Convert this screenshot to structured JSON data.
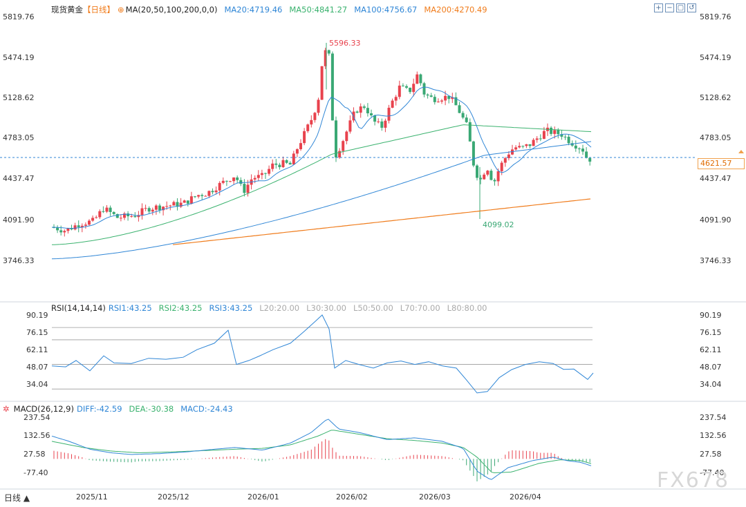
{
  "header": {
    "instrument": "现货黄金",
    "period": "【日线】",
    "ma_label": "MA(20,50,100,200,0,0)",
    "ma20": "MA20:4719.46",
    "ma50": "MA50:4841.27",
    "ma100": "MA100:4756.67",
    "ma200": "MA200:4270.49"
  },
  "rsi_header": {
    "label": "RSI(14,14,14)",
    "rsi1": "RSI1:43.25",
    "rsi2": "RSI2:43.25",
    "rsi3": "RSI3:43.25",
    "l20": "L20:20.00",
    "l30": "L30:30.00",
    "l50": "L50:50.00",
    "l70": "L70:70.00",
    "l80": "L80:80.00"
  },
  "macd_header": {
    "label": "MACD(26,12,9)",
    "diff": "DIFF:-42.59",
    "dea": "DEA:-30.38",
    "macd": "MACD:-24.43"
  },
  "footer": {
    "period_button": "日线 ▲",
    "watermark": "FX678"
  },
  "current_price": "4621.57",
  "colors": {
    "up": "#e8424d",
    "down": "#3aa874",
    "ma20": "#2f86d6",
    "ma50": "#3ab26e",
    "ma100": "#2f86d6",
    "ma200": "#f07c1c",
    "rsi": "#2f86d6",
    "dea": "#3ab26e",
    "diff": "#2f86d6"
  },
  "chart_data": [
    {
      "type": "candlestick",
      "title": "现货黄金",
      "y_ticks": [
        "5819.76",
        "5474.19",
        "5128.62",
        "4783.05",
        "4437.47",
        "4091.90",
        "3746.33"
      ],
      "ylim": [
        3700,
        5870
      ],
      "x_ticks": [
        "2025/11",
        "2025/12",
        "2026/01",
        "2026/02",
        "2026/03",
        "2026/04"
      ],
      "annotations": {
        "high": "5596.33",
        "low": "4099.02"
      },
      "last_price": 4621.57,
      "ma_values": {
        "MA20": 4719.46,
        "MA50": 4841.27,
        "MA100": 4756.67,
        "MA200": 4270.49
      }
    },
    {
      "type": "line",
      "title": "RSI(14,14,14)",
      "y_ticks": [
        "90.19",
        "76.15",
        "62.11",
        "48.07",
        "34.04"
      ],
      "reference_lines": [
        80,
        70,
        50,
        30
      ],
      "series": [
        {
          "name": "RSI1",
          "last": 43.25
        }
      ]
    },
    {
      "type": "bar",
      "title": "MACD(26,12,9)",
      "y_ticks": [
        "237.54",
        "132.56",
        "27.58",
        "-77.40"
      ],
      "series": [
        {
          "name": "DIFF",
          "last": -42.59
        },
        {
          "name": "DEA",
          "last": -30.38
        },
        {
          "name": "MACD",
          "last": -24.43
        }
      ]
    }
  ]
}
